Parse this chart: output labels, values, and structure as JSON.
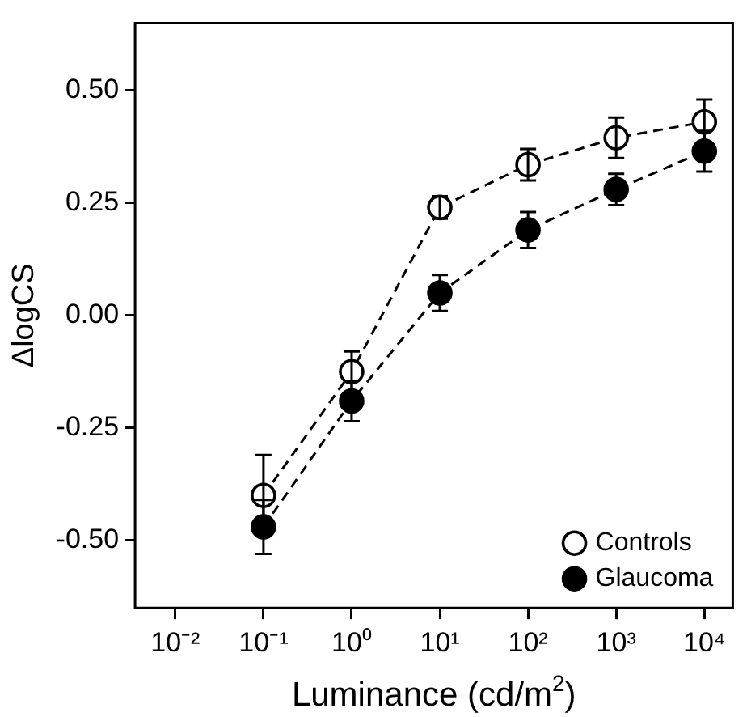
{
  "chart_data": {
    "type": "line",
    "xlabel": "Luminance (cd/m$^{2}$)",
    "ylabel": "ΔlogCS",
    "x": [
      0.1,
      1,
      10,
      100,
      1000,
      10000
    ],
    "series": [
      {
        "name": "Controls",
        "color": "#ffffff",
        "values": [
          -0.4,
          -0.125,
          0.24,
          0.335,
          0.395,
          0.43
        ],
        "errors": [
          0.09,
          0.045,
          0.025,
          0.035,
          0.045,
          0.05
        ]
      },
      {
        "name": "Glaucoma",
        "color": "#000000",
        "values": [
          -0.47,
          -0.19,
          0.05,
          0.19,
          0.28,
          0.365
        ],
        "errors": [
          0.06,
          0.045,
          0.04,
          0.04,
          0.035,
          0.045
        ]
      }
    ],
    "log": "x",
    "xlim": [
      0.0035,
      21000
    ],
    "xticks": [
      {
        "value": 0.01,
        "label": "10⁻²"
      },
      {
        "value": 0.1,
        "label": "10⁻¹"
      },
      {
        "value": 1,
        "label": "10⁰"
      },
      {
        "value": 10,
        "label": "10¹"
      },
      {
        "value": 100,
        "label": "10²"
      },
      {
        "value": 1000,
        "label": "10³"
      },
      {
        "value": 10000,
        "label": "10⁴"
      }
    ],
    "ylim": [
      -0.65,
      0.65
    ],
    "yticks": [
      {
        "value": -0.5,
        "label": "-0.50"
      },
      {
        "value": -0.25,
        "label": "-0.25"
      },
      {
        "value": 0,
        "label": "0.00"
      },
      {
        "value": 0.25,
        "label": "0.25"
      },
      {
        "value": 0.5,
        "label": "0.50"
      }
    ],
    "marker": "circle",
    "line_style": "dashed",
    "legend": "bottom right",
    "grid": false
  }
}
